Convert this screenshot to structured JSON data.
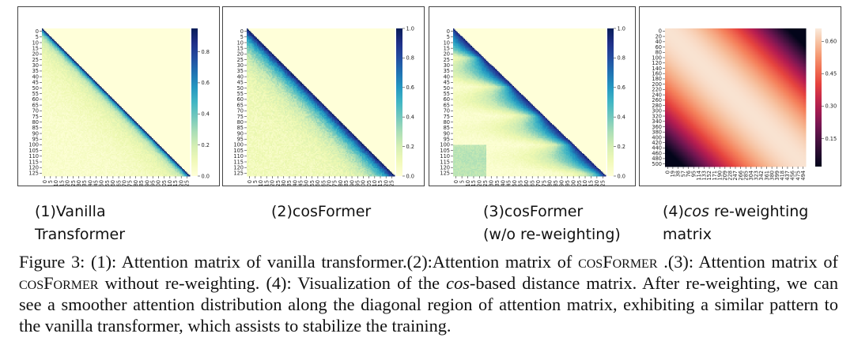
{
  "chart_data": [
    {
      "type": "heatmap",
      "rows": 128,
      "cols": 128,
      "pattern": "lower-triangular attention, strong diagonal",
      "y_ticks": [
        "0",
        "5",
        "10",
        "15",
        "20",
        "25",
        "30",
        "35",
        "40",
        "45",
        "50",
        "55",
        "60",
        "65",
        "70",
        "75",
        "80",
        "85",
        "90",
        "95",
        "100",
        "105",
        "110",
        "115",
        "120",
        "125"
      ],
      "x_ticks": [
        "0",
        "5",
        "10",
        "15",
        "20",
        "25",
        "30",
        "35",
        "40",
        "45",
        "50",
        "55",
        "60",
        "65",
        "70",
        "75",
        "80",
        "85",
        "90",
        "95",
        "100",
        "105",
        "110",
        "115",
        "120",
        "125"
      ],
      "colorbar_ticks": [
        "0.0",
        "0.2",
        "0.4",
        "0.6",
        "0.8"
      ],
      "vmin": 0,
      "vmax": 0.95,
      "colormap": "YlGnBu"
    },
    {
      "type": "heatmap",
      "rows": 128,
      "cols": 128,
      "pattern": "lower-triangular attention, smooth wide diagonal band",
      "y_ticks": [
        "0",
        "5",
        "10",
        "15",
        "20",
        "25",
        "30",
        "35",
        "40",
        "45",
        "50",
        "55",
        "60",
        "65",
        "70",
        "75",
        "80",
        "85",
        "90",
        "95",
        "100",
        "105",
        "110",
        "115",
        "120",
        "125"
      ],
      "x_ticks": [
        "0",
        "5",
        "10",
        "15",
        "20",
        "25",
        "30",
        "35",
        "40",
        "45",
        "50",
        "55",
        "60",
        "65",
        "70",
        "75",
        "80",
        "85",
        "90",
        "95",
        "100",
        "105",
        "110",
        "115",
        "120",
        "125"
      ],
      "colorbar_ticks": [
        "0.0",
        "0.2",
        "0.4",
        "0.6",
        "0.8",
        "1.0"
      ],
      "vmin": 0,
      "vmax": 1.0,
      "colormap": "YlGnBu"
    },
    {
      "type": "heatmap",
      "rows": 128,
      "cols": 128,
      "pattern": "lower-triangular attention, block-stepped diagonal",
      "y_ticks": [
        "0",
        "5",
        "10",
        "15",
        "20",
        "25",
        "30",
        "35",
        "40",
        "45",
        "50",
        "55",
        "60",
        "65",
        "70",
        "75",
        "80",
        "85",
        "90",
        "95",
        "100",
        "105",
        "110",
        "115",
        "120",
        "125"
      ],
      "x_ticks": [
        "0",
        "5",
        "10",
        "15",
        "20",
        "25",
        "30",
        "35",
        "40",
        "45",
        "50",
        "55",
        "60",
        "65",
        "70",
        "75",
        "80",
        "85",
        "90",
        "95",
        "100",
        "105",
        "110",
        "115",
        "120",
        "125"
      ],
      "colorbar_ticks": [
        "0.0",
        "0.2",
        "0.4",
        "0.6",
        "0.8",
        "1.0"
      ],
      "vmin": 0,
      "vmax": 1.0,
      "colormap": "YlGnBu"
    },
    {
      "type": "heatmap",
      "rows": 512,
      "cols": 512,
      "pattern": "cos distance matrix, highest on diagonal",
      "y_ticks": [
        "0",
        "20",
        "40",
        "60",
        "80",
        "100",
        "120",
        "140",
        "160",
        "180",
        "200",
        "220",
        "240",
        "260",
        "280",
        "300",
        "320",
        "340",
        "360",
        "380",
        "400",
        "420",
        "440",
        "460",
        "480",
        "500"
      ],
      "x_ticks": [
        "0",
        "19",
        "38",
        "57",
        "76",
        "95",
        "114",
        "133",
        "152",
        "171",
        "190",
        "209",
        "228",
        "247",
        "266",
        "285",
        "304",
        "323",
        "342",
        "361",
        "380",
        "399",
        "418",
        "437",
        "456",
        "475",
        "494"
      ],
      "colorbar_ticks": [
        "0.15",
        "0.30",
        "0.45",
        "0.60"
      ],
      "vmin": 0.02,
      "vmax": 0.66,
      "colormap": "rocket"
    }
  ],
  "labels": [
    {
      "line1": "(1)Vanilla",
      "line2": "Transformer"
    },
    {
      "line1": "(2)cosFormer",
      "line2": ""
    },
    {
      "line1": "(3)cosFormer",
      "line2": "(w/o re-weighting)"
    },
    {
      "line1_pre": "(4)",
      "line1_em": "cos",
      "line1_post": " re-weighting",
      "line2": "matrix"
    }
  ],
  "caption": {
    "p1": "Figure 3: (1): Attention matrix of vanilla transformer.(2):Attention matrix of ",
    "sc1": "cosFormer",
    "p2": " .(3): Attention matrix of ",
    "sc2": "cosFormer",
    "p3": " without re-weighting. (4): Visualization of the ",
    "it1": "cos",
    "p4": "-based distance matrix. After re-weighting, we can see a smoother attention distribution along the diagonal region of attention matrix, exhibiting a similar pattern to the vanilla transformer, which assists to stabilize the training."
  }
}
